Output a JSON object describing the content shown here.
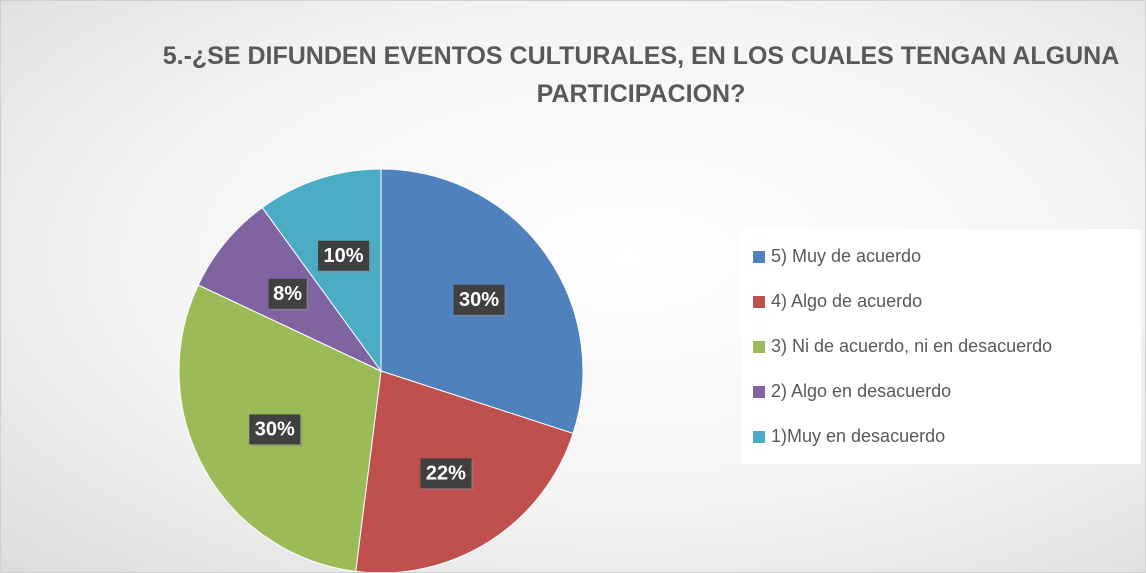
{
  "chart_data": {
    "type": "pie",
    "title": "5.-¿SE DIFUNDEN EVENTOS CULTURALES, EN LOS CUALES TENGAN ALGUNA PARTICIPACION?",
    "categories": [
      "5) Muy de acuerdo",
      "4) Algo de acuerdo",
      "3) Ni de acuerdo, ni en desacuerdo",
      "2) Algo en desacuerdo",
      "1)Muy en desacuerdo"
    ],
    "values": [
      30,
      22,
      30,
      8,
      10
    ],
    "value_labels": [
      "30%",
      "22%",
      "30%",
      "8%",
      "10%"
    ],
    "colors": [
      "#4f81bd",
      "#c0504d",
      "#9bbb59",
      "#8064a2",
      "#4bacc6"
    ],
    "legend": "right"
  }
}
